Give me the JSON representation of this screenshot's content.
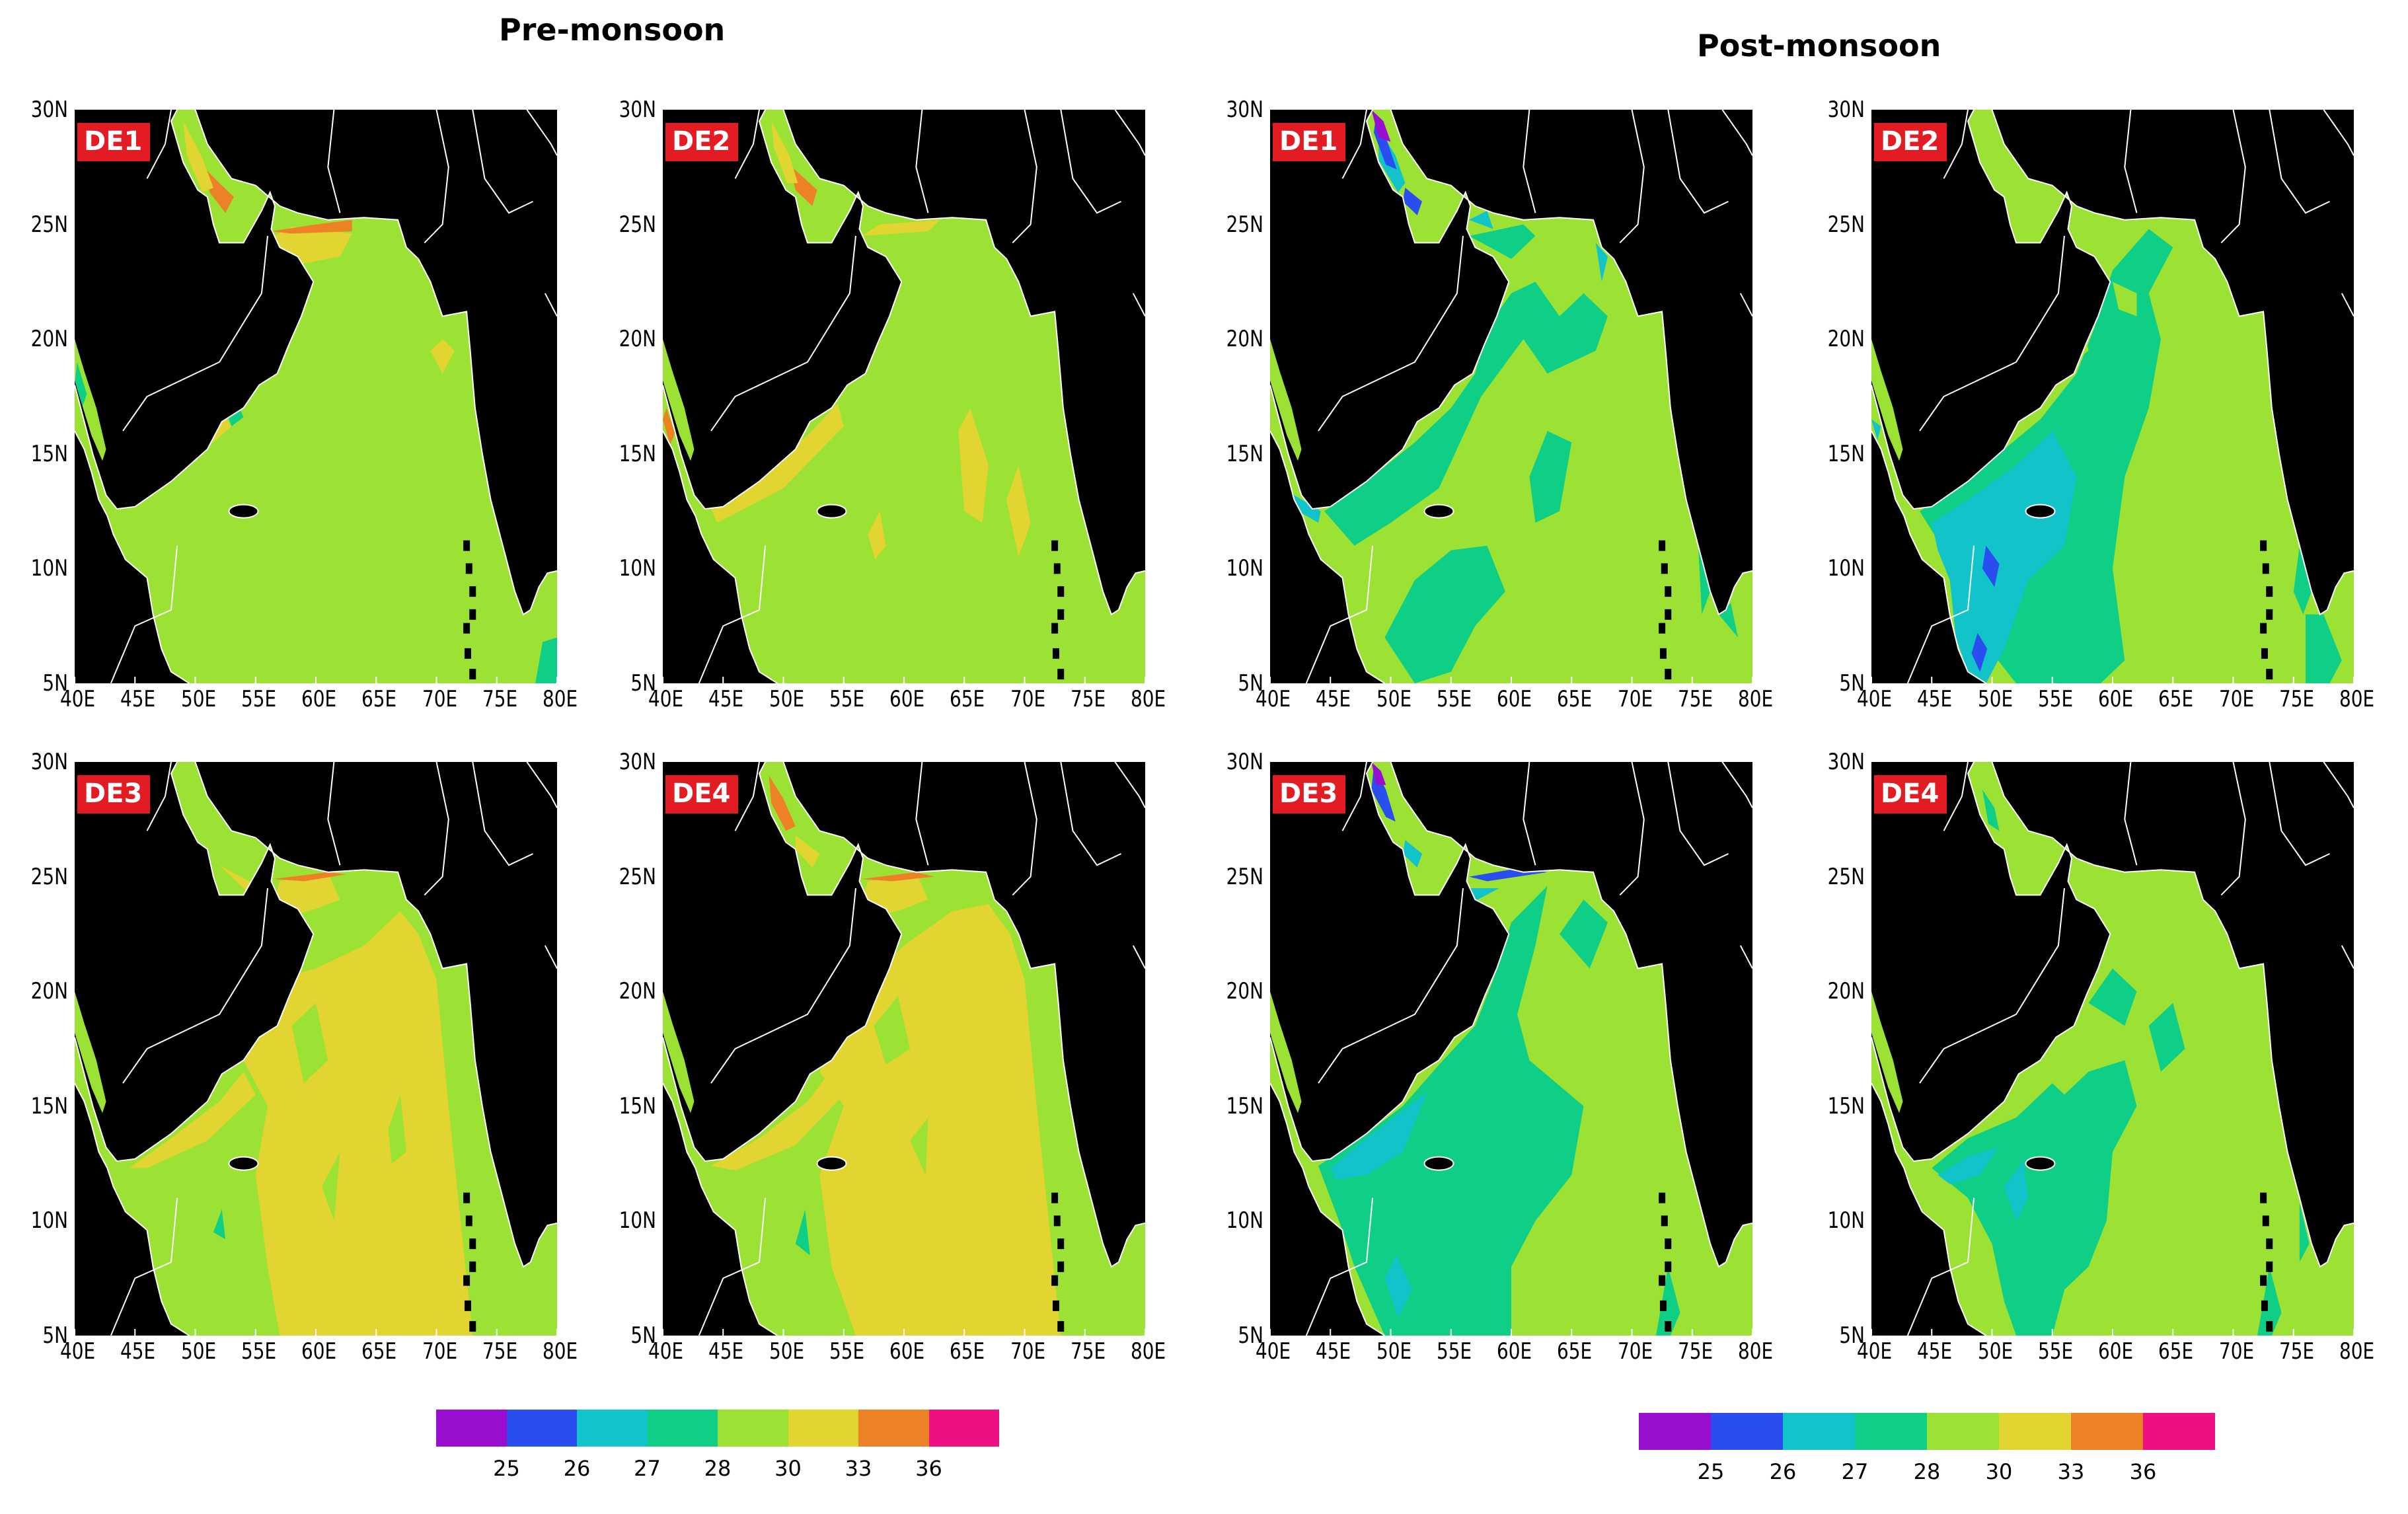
{
  "titles": {
    "pre": "Pre-monsoon",
    "post": "Post-monsoon"
  },
  "panels": [
    {
      "season": "pre",
      "label": "DE1",
      "regime": "pre1"
    },
    {
      "season": "pre",
      "label": "DE2",
      "regime": "pre2"
    },
    {
      "season": "pre",
      "label": "DE3",
      "regime": "pre3"
    },
    {
      "season": "pre",
      "label": "DE4",
      "regime": "pre4"
    },
    {
      "season": "post",
      "label": "DE1",
      "regime": "post1"
    },
    {
      "season": "post",
      "label": "DE2",
      "regime": "post2"
    },
    {
      "season": "post",
      "label": "DE3",
      "regime": "post3"
    },
    {
      "season": "post",
      "label": "DE4",
      "regime": "post4"
    }
  ],
  "axes": {
    "lon_ticks": [
      "40E",
      "45E",
      "50E",
      "55E",
      "60E",
      "65E",
      "70E",
      "75E",
      "80E"
    ],
    "lat_ticks": [
      "30N",
      "25N",
      "20N",
      "15N",
      "10N",
      "5N"
    ],
    "lon_range": [
      40,
      80
    ],
    "lat_range": [
      5,
      30
    ]
  },
  "colorbar": {
    "labels": [
      "25",
      "26",
      "27",
      "28",
      "30",
      "33",
      "36"
    ],
    "colors": [
      "#9a0fcf",
      "#2a4df0",
      "#12c3c9",
      "#0fcf86",
      "#9be234",
      "#e2d531",
      "#ec8126",
      "#ec1083"
    ]
  },
  "colors": {
    "land": "#000000",
    "coast": "#ffffff",
    "badge": "#e31b23"
  }
}
